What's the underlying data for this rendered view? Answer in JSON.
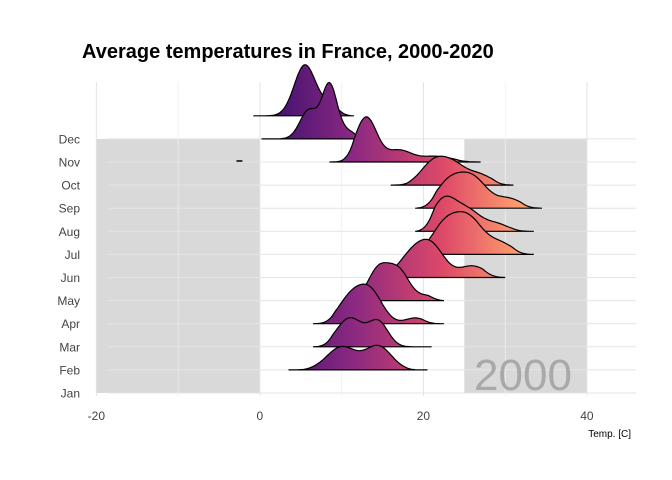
{
  "chart_data": {
    "type": "ridgeline",
    "title": "Average temperatures in France, 2000-2020",
    "xlabel": "Temp. [C]",
    "ylabel": "",
    "xlim": [
      -22,
      46
    ],
    "x_ticks": [
      -20,
      0,
      20,
      40
    ],
    "x_tick_labels": [
      "-20",
      "0",
      "20",
      "40"
    ],
    "months": [
      "Jan",
      "Feb",
      "Mar",
      "Apr",
      "May",
      "Jun",
      "Jul",
      "Aug",
      "Sep",
      "Oct",
      "Nov",
      "Dec"
    ],
    "year_label": "2000",
    "grey_bands": [
      [
        -20,
        0
      ],
      [
        25,
        40
      ]
    ],
    "fill_gradient": [
      "#3b0f70",
      "#8c2981",
      "#de4968",
      "#fe9f6d"
    ],
    "grid": true,
    "ridges": [
      {
        "month": "Feb",
        "min": 3.5,
        "max": 20.5,
        "peaks": [
          {
            "mu": 10,
            "sigma": 1.8,
            "h": 1.0
          },
          {
            "mu": 14.5,
            "sigma": 1.6,
            "h": 1.02
          }
        ]
      },
      {
        "month": "Mar",
        "min": 6.5,
        "max": 21,
        "peaks": [
          {
            "mu": 11,
            "sigma": 1.6,
            "h": 1.25
          },
          {
            "mu": 14.5,
            "sigma": 1.2,
            "h": 1.05
          }
        ]
      },
      {
        "month": "Apr",
        "min": 6.5,
        "max": 22.5,
        "peaks": [
          {
            "mu": 11,
            "sigma": 1.5,
            "h": 1.05
          },
          {
            "mu": 13.5,
            "sigma": 1.5,
            "h": 1.35
          },
          {
            "mu": 19,
            "sigma": 1.2,
            "h": 0.25
          }
        ]
      },
      {
        "month": "May",
        "min": 11,
        "max": 22.5,
        "peaks": [
          {
            "mu": 14.5,
            "sigma": 1.3,
            "h": 1.35
          },
          {
            "mu": 17,
            "sigma": 1.3,
            "h": 1.25
          },
          {
            "mu": 20.5,
            "sigma": 1.2,
            "h": 0.2
          }
        ]
      },
      {
        "month": "Jun",
        "min": 13.5,
        "max": 30,
        "peaks": [
          {
            "mu": 18.5,
            "sigma": 1.6,
            "h": 0.9
          },
          {
            "mu": 21,
            "sigma": 1.6,
            "h": 1.3
          },
          {
            "mu": 26,
            "sigma": 1.6,
            "h": 0.5
          }
        ]
      },
      {
        "month": "Jul",
        "min": 18,
        "max": 33.5,
        "peaks": [
          {
            "mu": 22.5,
            "sigma": 1.6,
            "h": 1.15
          },
          {
            "mu": 25.5,
            "sigma": 1.8,
            "h": 1.55
          },
          {
            "mu": 29.5,
            "sigma": 1.5,
            "h": 0.45
          }
        ]
      },
      {
        "month": "Aug",
        "min": 19,
        "max": 33.5,
        "peaks": [
          {
            "mu": 22.5,
            "sigma": 1.5,
            "h": 1.35
          },
          {
            "mu": 25.5,
            "sigma": 1.6,
            "h": 0.85
          },
          {
            "mu": 29,
            "sigma": 1.4,
            "h": 0.3
          }
        ]
      },
      {
        "month": "Sep",
        "min": 19,
        "max": 34.5,
        "peaks": [
          {
            "mu": 23,
            "sigma": 1.6,
            "h": 1.0
          },
          {
            "mu": 26,
            "sigma": 1.8,
            "h": 1.3
          },
          {
            "mu": 30.5,
            "sigma": 1.5,
            "h": 0.4
          }
        ]
      },
      {
        "month": "Oct",
        "min": 16,
        "max": 31,
        "peaks": [
          {
            "mu": 21,
            "sigma": 1.5,
            "h": 0.8
          },
          {
            "mu": 23.5,
            "sigma": 1.7,
            "h": 0.9
          },
          {
            "mu": 27,
            "sigma": 1.5,
            "h": 0.4
          }
        ]
      },
      {
        "month": "Nov",
        "min": 8.5,
        "max": 27,
        "peaks": [
          {
            "mu": 13,
            "sigma": 1.3,
            "h": 1.95
          },
          {
            "mu": 17,
            "sigma": 1.5,
            "h": 0.5
          },
          {
            "mu": 21.5,
            "sigma": 2.0,
            "h": 0.25
          }
        ]
      },
      {
        "month": "Dec",
        "min": 0.2,
        "max": 13.5,
        "peaks": [
          {
            "mu": 6,
            "sigma": 1.1,
            "h": 1.25
          },
          {
            "mu": 8.5,
            "sigma": 0.9,
            "h": 2.25
          },
          {
            "mu": 10.5,
            "sigma": 1.3,
            "h": 0.35
          }
        ]
      }
    ],
    "stray_marks": [
      {
        "month": "Nov",
        "x": -2.5
      }
    ],
    "extra_ridges_above": [
      {
        "min": -0.8,
        "max": 11.5,
        "peaks": [
          {
            "mu": 5.5,
            "sigma": 1.3,
            "h": 2.2
          },
          {
            "mu": 8.5,
            "sigma": 1.2,
            "h": 0.45
          }
        ]
      }
    ]
  }
}
